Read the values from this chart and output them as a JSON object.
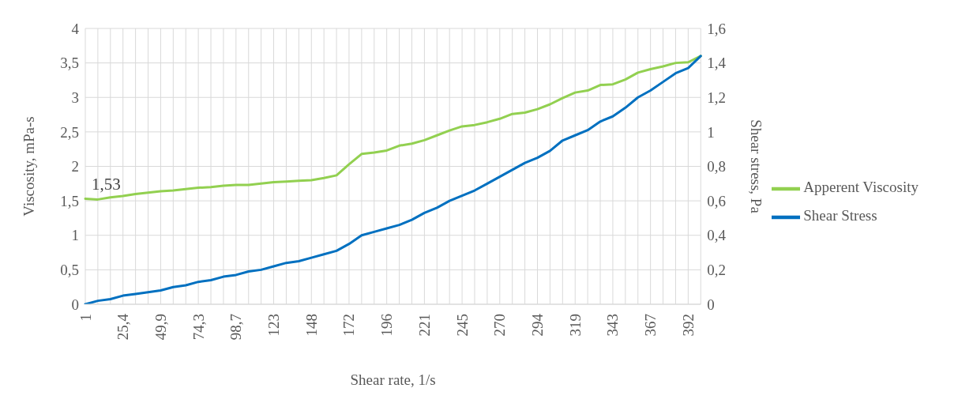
{
  "chart_data": {
    "type": "line",
    "xlabel": "Shear rate, 1/s",
    "ylabel": "Viscosity, mPa-s",
    "y2label": "Shear stress, Pa",
    "categories": [
      "1",
      null,
      null,
      "25,4",
      null,
      null,
      "49,9",
      null,
      null,
      "74,3",
      null,
      null,
      "98,7",
      null,
      null,
      "123",
      null,
      null,
      "148",
      null,
      null,
      "172",
      null,
      null,
      "196",
      null,
      null,
      "221",
      null,
      null,
      "245",
      null,
      null,
      "270",
      null,
      null,
      "294",
      null,
      null,
      "319",
      null,
      null,
      "343",
      null,
      null,
      "367",
      null,
      null,
      "392",
      null
    ],
    "series": [
      {
        "name": "Apperent Viscosity",
        "color": "#92d050",
        "values": [
          1.53,
          1.52,
          1.55,
          1.57,
          1.6,
          1.62,
          1.64,
          1.65,
          1.67,
          1.69,
          1.7,
          1.72,
          1.73,
          1.73,
          1.75,
          1.77,
          1.78,
          1.79,
          1.8,
          1.83,
          1.87,
          2.03,
          2.18,
          2.2,
          2.23,
          2.3,
          2.33,
          2.38,
          2.45,
          2.52,
          2.58,
          2.6,
          2.64,
          2.69,
          2.76,
          2.78,
          2.83,
          2.9,
          2.99,
          3.07,
          3.1,
          3.18,
          3.19,
          3.26,
          3.36,
          3.41,
          3.45,
          3.5,
          3.51,
          3.6
        ],
        "value_labels": [
          "1,53",
          null,
          null,
          null,
          null,
          null,
          null,
          null,
          null,
          null,
          null,
          null,
          null,
          null,
          null,
          null,
          null,
          null,
          null,
          null,
          null,
          null,
          null,
          null,
          null,
          null,
          null,
          null,
          null,
          null,
          null,
          null,
          null,
          null,
          null,
          null,
          null,
          null,
          null,
          null,
          null,
          null,
          null,
          null,
          null,
          null,
          null,
          null,
          null,
          null
        ]
      },
      {
        "name": "Shear Stress",
        "color": "#0070c0",
        "axis": "y2",
        "values": [
          0.0,
          0.02,
          0.03,
          0.05,
          0.06,
          0.07,
          0.08,
          0.1,
          0.11,
          0.13,
          0.14,
          0.16,
          0.17,
          0.19,
          0.2,
          0.22,
          0.24,
          0.25,
          0.27,
          0.29,
          0.31,
          0.35,
          0.4,
          0.42,
          0.44,
          0.46,
          0.49,
          0.53,
          0.56,
          0.6,
          0.63,
          0.66,
          0.7,
          0.74,
          0.78,
          0.82,
          0.85,
          0.89,
          0.95,
          0.98,
          1.01,
          1.06,
          1.09,
          1.14,
          1.2,
          1.24,
          1.29,
          1.34,
          1.37,
          1.44
        ]
      }
    ],
    "ylim": [
      0,
      4
    ],
    "yticks": [
      0,
      {
        "value": 0.5,
        "label": "0,5"
      },
      1,
      {
        "value": 1.5,
        "label": "1,5"
      },
      2,
      {
        "value": 2.5,
        "label": "2,5"
      },
      3,
      {
        "value": 3.5,
        "label": "3,5"
      },
      4
    ],
    "y2lim": [
      0,
      1.6
    ],
    "y2ticks": [
      0,
      {
        "value": 0.2,
        "label": "0,2"
      },
      {
        "value": 0.4,
        "label": "0,4"
      },
      {
        "value": 0.6,
        "label": "0,6"
      },
      {
        "value": 0.8,
        "label": "0,8"
      },
      1,
      {
        "value": 1.2,
        "label": "1,2"
      },
      {
        "value": 1.4,
        "label": "1,4"
      },
      {
        "value": 1.6,
        "label": "1,6"
      }
    ],
    "grid": true,
    "legend": "right",
    "marker": "none",
    "line_style": "solid"
  }
}
